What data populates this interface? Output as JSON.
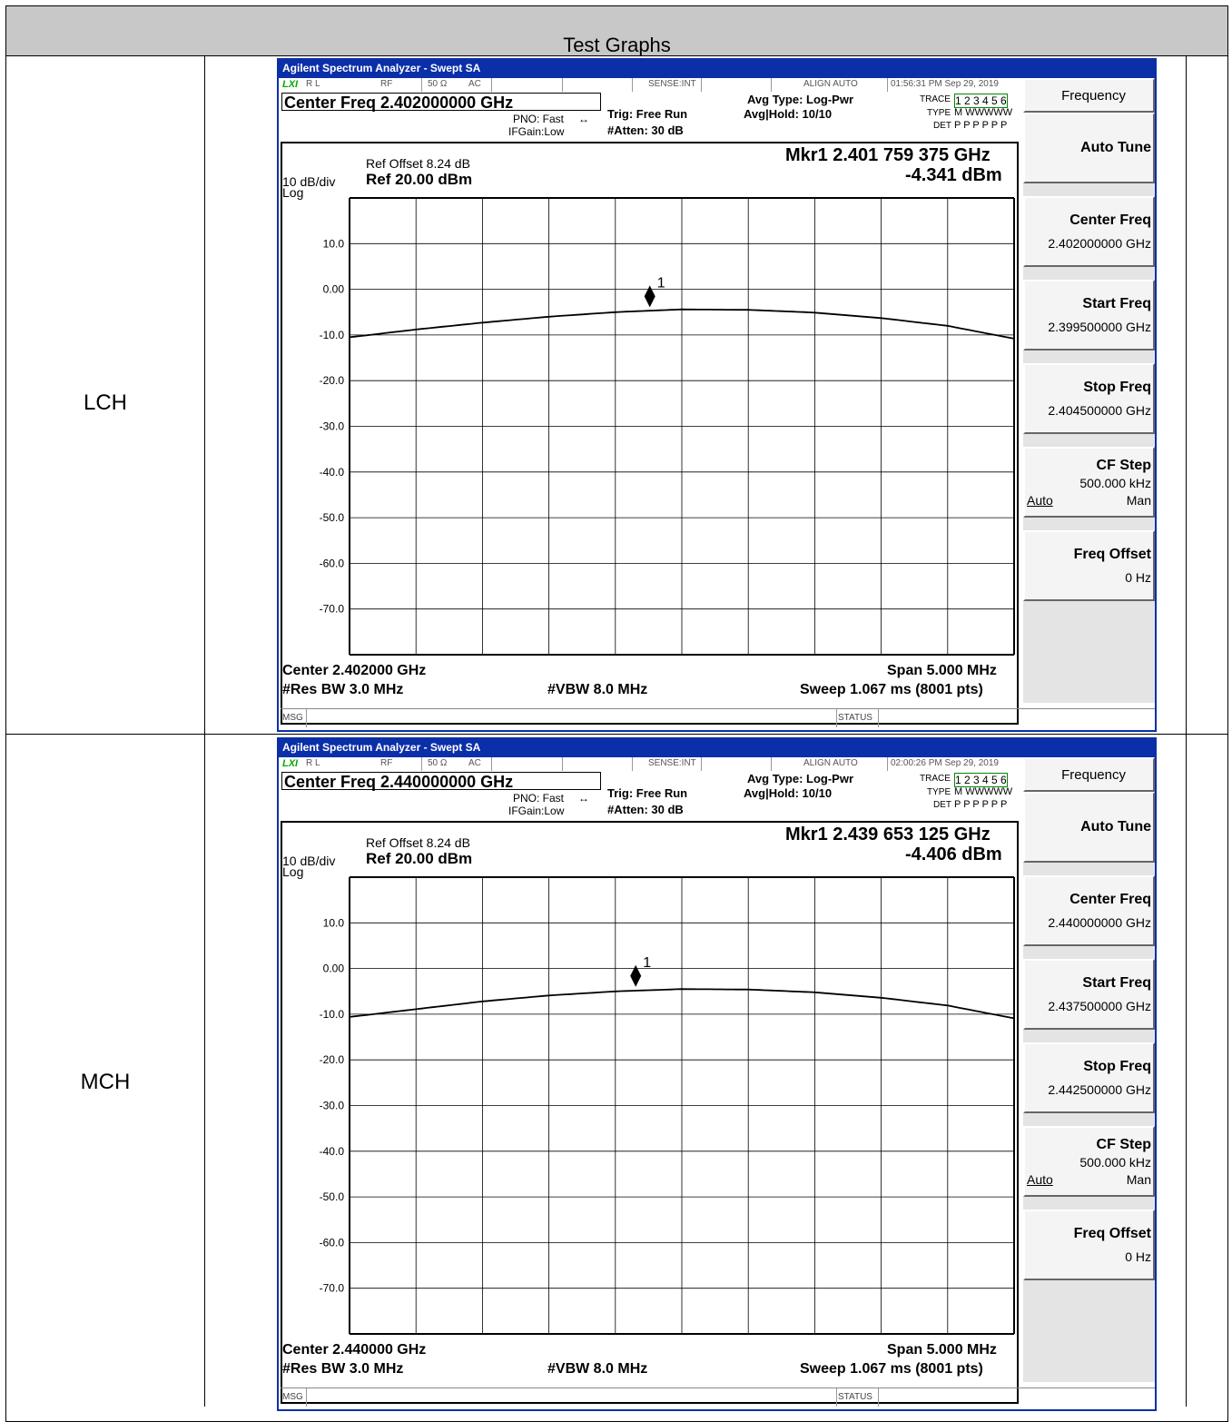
{
  "page": {
    "title": "Test Graphs"
  },
  "rows": [
    {
      "label": "LCH",
      "analyzer": {
        "window_title": "Agilent Spectrum Analyzer - Swept SA",
        "status": {
          "rl": "R L",
          "rf": "RF",
          "impedance": "50 Ω",
          "coupling": "AC",
          "sense": "SENSE:INT",
          "align": "ALIGN AUTO",
          "datetime": "01:56:31 PM Sep 29, 2019"
        },
        "center_freq_label": "Center Freq 2.402000000 GHz",
        "pno": "PNO: Fast",
        "ifgain": "IFGain:Low",
        "trig": "Trig: Free Run",
        "atten": "#Atten: 30 dB",
        "avg_type": "Avg Type: Log-Pwr",
        "avg_hold": "Avg|Hold: 10/10",
        "trace_label": "TRACE",
        "trace_nums": "1 2 3 4 5 6",
        "type_label": "TYPE",
        "type_vals": "M WWWWW",
        "det_label": "DET",
        "det_vals": "P P P P P P",
        "ref_offset": "Ref Offset 8.24 dB",
        "ref_level": "Ref 20.00 dBm",
        "scale": "10 dB/div",
        "log": "Log",
        "marker_freq": "Mkr1 2.401 759 375 GHz",
        "marker_level": "-4.341 dBm",
        "marker_id": "1",
        "center_bottom": "Center 2.402000 GHz",
        "res_bw": "#Res BW 3.0 MHz",
        "vbw": "#VBW 8.0 MHz",
        "span": "Span 5.000 MHz",
        "sweep": "Sweep  1.067 ms (8001 pts)",
        "msg": "MSG",
        "status_label": "STATUS",
        "softkeys": {
          "menu": "Frequency",
          "auto_tune": "Auto Tune",
          "center_freq": "Center Freq",
          "center_freq_val": "2.402000000 GHz",
          "start_freq": "Start Freq",
          "start_freq_val": "2.399500000 GHz",
          "stop_freq": "Stop Freq",
          "stop_freq_val": "2.404500000 GHz",
          "cf_step": "CF Step",
          "cf_step_val": "500.000 kHz",
          "auto": "Auto",
          "man": "Man",
          "freq_offset": "Freq Offset",
          "freq_offset_val": "0 Hz"
        }
      },
      "chart_data": {
        "type": "line",
        "y_ticks": [
          "10.0",
          "0.00",
          "-10.0",
          "-20.0",
          "-30.0",
          "-40.0",
          "-50.0",
          "-60.0",
          "-70.0"
        ],
        "ylim": [
          -80,
          20
        ],
        "xlim": [
          2.3995,
          2.4045
        ],
        "series": [
          {
            "x": [
              2.3995,
              2.4,
              2.4005,
              2.401,
              2.4015,
              2.402,
              2.4025,
              2.403,
              2.4035,
              2.404,
              2.4045
            ],
            "values": [
              -10.5,
              -8.8,
              -7.3,
              -6.0,
              -5.0,
              -4.4,
              -4.5,
              -5.1,
              -6.3,
              -8.0,
              -10.8
            ]
          }
        ],
        "marker": {
          "x": 2.401759,
          "y": -4.341
        }
      }
    },
    {
      "label": "MCH",
      "analyzer": {
        "window_title": "Agilent Spectrum Analyzer - Swept SA",
        "status": {
          "rl": "R L",
          "rf": "RF",
          "impedance": "50 Ω",
          "coupling": "AC",
          "sense": "SENSE:INT",
          "align": "ALIGN AUTO",
          "datetime": "02:00:26 PM Sep 29, 2019"
        },
        "center_freq_label": "Center Freq 2.440000000 GHz",
        "pno": "PNO: Fast",
        "ifgain": "IFGain:Low",
        "trig": "Trig: Free Run",
        "atten": "#Atten: 30 dB",
        "avg_type": "Avg Type: Log-Pwr",
        "avg_hold": "Avg|Hold: 10/10",
        "trace_label": "TRACE",
        "trace_nums": "1 2 3 4 5 6",
        "type_label": "TYPE",
        "type_vals": "M WWWWW",
        "det_label": "DET",
        "det_vals": "P P P P P P",
        "ref_offset": "Ref Offset 8.24 dB",
        "ref_level": "Ref 20.00 dBm",
        "scale": "10 dB/div",
        "log": "Log",
        "marker_freq": "Mkr1 2.439 653 125 GHz",
        "marker_level": "-4.406 dBm",
        "marker_id": "1",
        "center_bottom": "Center 2.440000 GHz",
        "res_bw": "#Res BW 3.0 MHz",
        "vbw": "#VBW 8.0 MHz",
        "span": "Span 5.000 MHz",
        "sweep": "Sweep  1.067 ms (8001 pts)",
        "msg": "MSG",
        "status_label": "STATUS",
        "softkeys": {
          "menu": "Frequency",
          "auto_tune": "Auto Tune",
          "center_freq": "Center Freq",
          "center_freq_val": "2.440000000 GHz",
          "start_freq": "Start Freq",
          "start_freq_val": "2.437500000 GHz",
          "stop_freq": "Stop Freq",
          "stop_freq_val": "2.442500000 GHz",
          "cf_step": "CF Step",
          "cf_step_val": "500.000 kHz",
          "auto": "Auto",
          "man": "Man",
          "freq_offset": "Freq Offset",
          "freq_offset_val": "0 Hz"
        }
      },
      "chart_data": {
        "type": "line",
        "y_ticks": [
          "10.0",
          "0.00",
          "-10.0",
          "-20.0",
          "-30.0",
          "-40.0",
          "-50.0",
          "-60.0",
          "-70.0"
        ],
        "ylim": [
          -80,
          20
        ],
        "xlim": [
          2.4375,
          2.4425
        ],
        "series": [
          {
            "x": [
              2.4375,
              2.438,
              2.4385,
              2.439,
              2.4395,
              2.44,
              2.4405,
              2.441,
              2.4415,
              2.442,
              2.4425
            ],
            "values": [
              -10.6,
              -8.9,
              -7.2,
              -5.9,
              -5.0,
              -4.5,
              -4.6,
              -5.2,
              -6.4,
              -8.1,
              -10.9
            ]
          }
        ],
        "marker": {
          "x": 2.439653,
          "y": -4.406
        }
      }
    }
  ]
}
